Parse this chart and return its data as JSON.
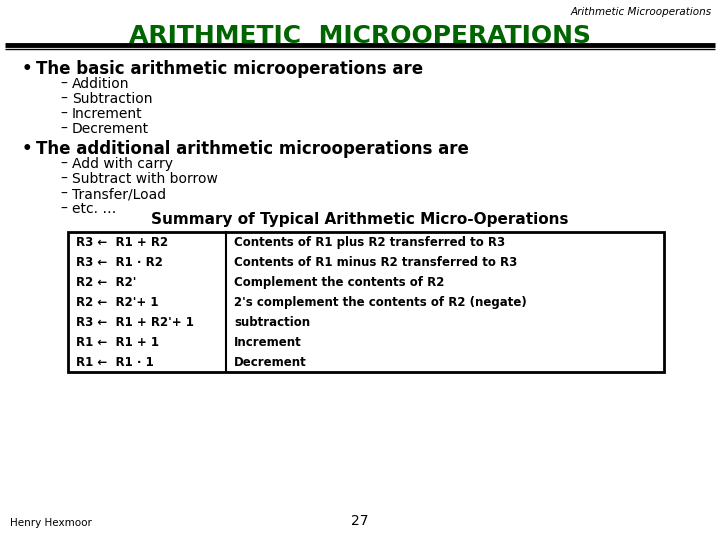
{
  "slide_bg": "#ffffff",
  "top_label": "Arithmetic Microoperations",
  "title": "ARITHMETIC  MICROOPERATIONS",
  "title_color": "#006400",
  "bullet1_header": "The basic arithmetic microoperations are",
  "bullet1_items": [
    "Addition",
    "Subtraction",
    "Increment",
    "Decrement"
  ],
  "bullet2_header": "The additional arithmetic microoperations are",
  "bullet2_items": [
    "Add with carry",
    "Subtract with borrow",
    "Transfer/Load",
    "etc. …"
  ],
  "table_title": "Summary of Typical Arithmetic Micro-Operations",
  "table_col1": [
    "R3 ←  R1 + R2",
    "R3 ←  R1 · R2",
    "R2 ←  R2'",
    "R2 ←  R2'+ 1",
    "R3 ←  R1 + R2'+ 1",
    "R1 ←  R1 + 1",
    "R1 ←  R1 · 1"
  ],
  "table_col2": [
    "Contents of R1 plus R2 transferred to R3",
    "Contents of R1 minus R2 transferred to R3",
    "Complement the contents of R2",
    "2's complement the contents of R2 (negate)",
    "subtraction",
    "Increment",
    "Decrement"
  ],
  "footer_left": "Henry Hexmoor",
  "footer_center": "27",
  "body_font_color": "#000000"
}
